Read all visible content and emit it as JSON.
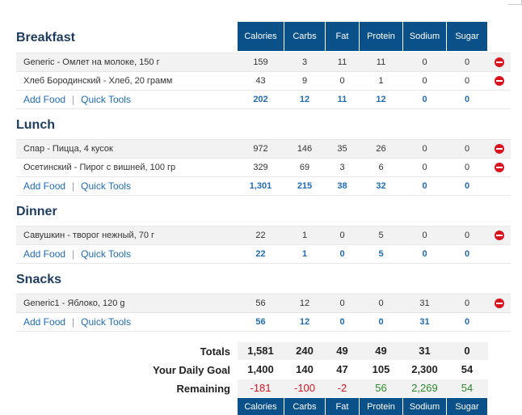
{
  "columns": [
    "Calories",
    "Carbs",
    "Fat",
    "Protein",
    "Sodium",
    "Sugar"
  ],
  "add_food": "Add Food",
  "quick_tools": "Quick Tools",
  "meals": [
    {
      "title": "Breakfast",
      "items": [
        {
          "name": "Generic - Омлет на молоке, 150 г",
          "values": [
            "159",
            "3",
            "11",
            "11",
            "0",
            "0"
          ]
        },
        {
          "name": "Хлеб Бородинский - Хлеб, 20 грамм",
          "values": [
            "43",
            "9",
            "0",
            "1",
            "0",
            "0"
          ]
        }
      ],
      "totals": [
        "202",
        "12",
        "11",
        "12",
        "0",
        "0"
      ]
    },
    {
      "title": "Lunch",
      "items": [
        {
          "name": "Спар - Пицца, 4 кусок",
          "values": [
            "972",
            "146",
            "35",
            "26",
            "0",
            "0"
          ]
        },
        {
          "name": "Осетинский - Пирог с вишней, 100 гр",
          "values": [
            "329",
            "69",
            "3",
            "6",
            "0",
            "0"
          ]
        }
      ],
      "totals": [
        "1,301",
        "215",
        "38",
        "32",
        "0",
        "0"
      ]
    },
    {
      "title": "Dinner",
      "items": [
        {
          "name": "Савушкин - творог нежный, 70 г",
          "values": [
            "22",
            "1",
            "0",
            "5",
            "0",
            "0"
          ]
        }
      ],
      "totals": [
        "22",
        "1",
        "0",
        "5",
        "0",
        "0"
      ]
    },
    {
      "title": "Snacks",
      "items": [
        {
          "name": "Generic1 - Яблоко, 120 g",
          "values": [
            "56",
            "12",
            "0",
            "0",
            "31",
            "0"
          ]
        }
      ],
      "totals": [
        "56",
        "12",
        "0",
        "0",
        "31",
        "0"
      ]
    }
  ],
  "summary": {
    "totals_label": "Totals",
    "totals": [
      "1,581",
      "240",
      "49",
      "49",
      "31",
      "0"
    ],
    "goal_label": "Your Daily Goal",
    "goal": [
      "1,400",
      "140",
      "47",
      "105",
      "2,300",
      "54"
    ],
    "remaining_label": "Remaining",
    "remaining": [
      "-181",
      "-100",
      "-2",
      "56",
      "2,269",
      "54"
    ]
  },
  "colors": {
    "header": "#0a5189",
    "link": "#1f6bb5",
    "negative": "#d9141f",
    "positive": "#2e8a2e"
  }
}
